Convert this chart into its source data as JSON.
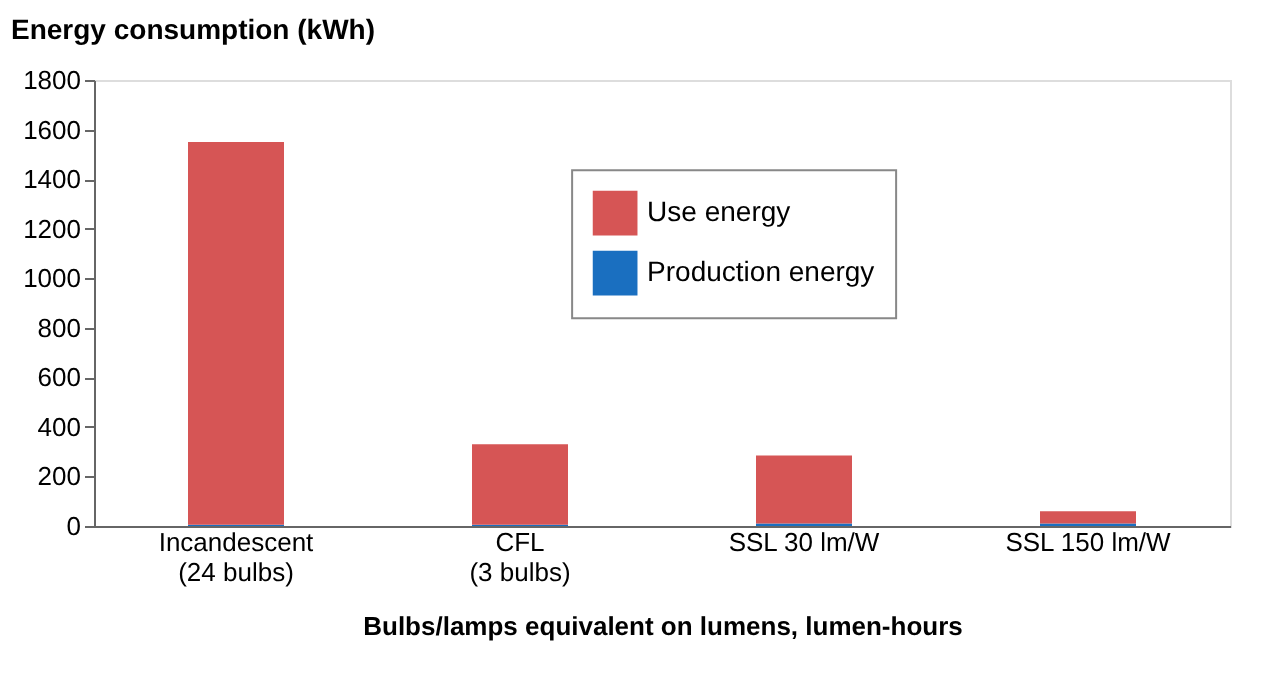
{
  "chart_data": {
    "type": "bar",
    "stacked": true,
    "ylabel": "Energy consumption (kWh)",
    "xlabel": "Bulbs/lamps equivalent on lumens, lumen-hours",
    "categories": [
      "Incandescent\n(24 bulbs)",
      "CFL\n(3 bulbs)",
      "SSL 30 lm/W",
      "SSL 150 lm/W"
    ],
    "series": [
      {
        "name": "Production energy",
        "color": "#1a6fc0",
        "values": [
          5,
          5,
          10,
          10
        ]
      },
      {
        "name": "Use energy",
        "color": "#d65555",
        "values": [
          1545,
          325,
          275,
          50
        ]
      }
    ],
    "ylim": [
      0,
      1800
    ],
    "yticks": [
      0,
      200,
      400,
      600,
      800,
      1000,
      1200,
      1400,
      1600,
      1800
    ],
    "grid": false,
    "legend": "top right"
  }
}
